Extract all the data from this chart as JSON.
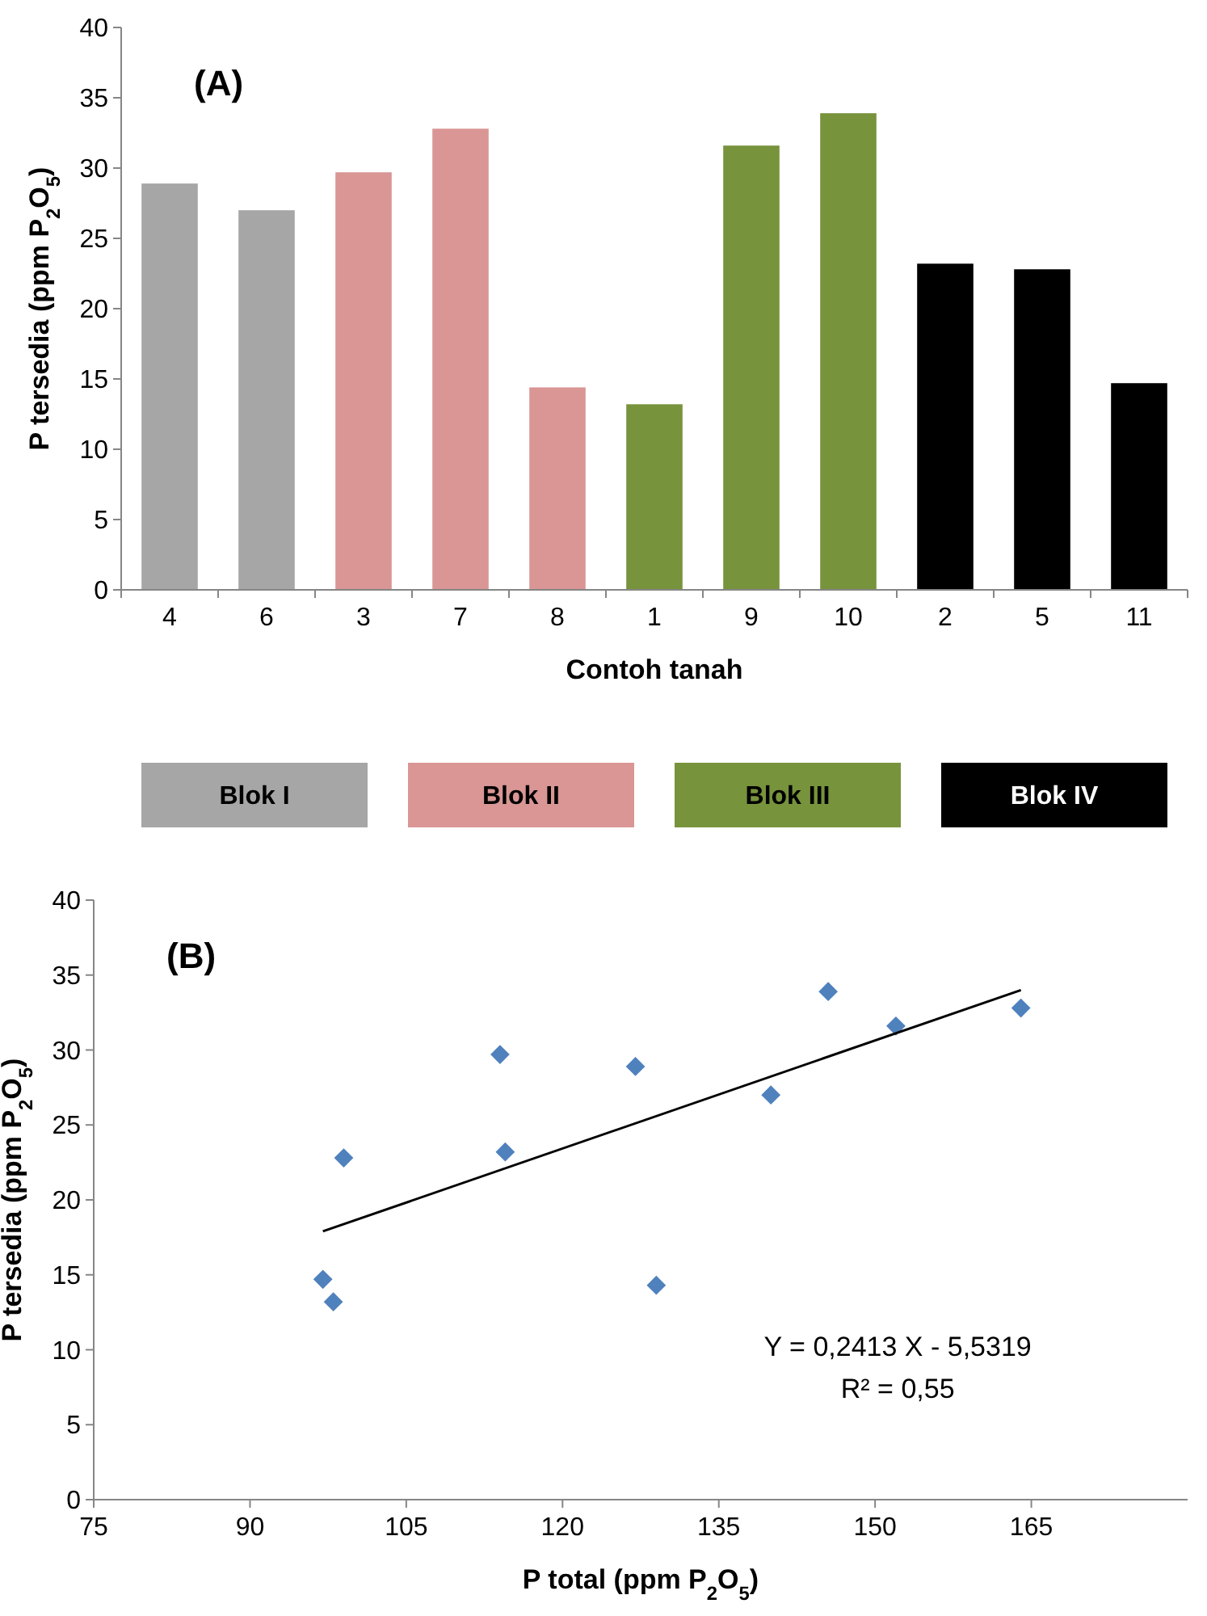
{
  "chart_data": [
    {
      "type": "bar",
      "title": "(A)",
      "xlabel": "Contoh tanah",
      "ylabel": "P tersedia (ppm P$_{2}$O$_{5}$)",
      "categories": [
        "4",
        "6",
        "3",
        "7",
        "8",
        "1",
        "9",
        "10",
        "2",
        "5",
        "11"
      ],
      "series": [
        {
          "name": "Blok I",
          "color": "#a6a6a6",
          "values": [
            28.9,
            27,
            null,
            null,
            null,
            null,
            null,
            null,
            null,
            null,
            null
          ]
        },
        {
          "name": "Blok II",
          "color": "#d99694",
          "values": [
            null,
            null,
            29.7,
            32.8,
            14.4,
            null,
            null,
            null,
            null,
            null,
            null
          ]
        },
        {
          "name": "Blok III",
          "color": "#77933c",
          "values": [
            null,
            null,
            null,
            null,
            null,
            13.2,
            31.6,
            33.9,
            null,
            null,
            null
          ]
        },
        {
          "name": "Blok IV",
          "color": "#000000",
          "values": [
            null,
            null,
            null,
            null,
            null,
            null,
            null,
            null,
            23.2,
            22.8,
            14.7
          ]
        }
      ],
      "ylim": [
        0,
        40
      ],
      "yticks": [
        0,
        5,
        10,
        15,
        20,
        25,
        30,
        35,
        40
      ],
      "legend": "bottom"
    },
    {
      "type": "scatter",
      "title": "(B)",
      "xlabel": "P total (ppm P$_{2}$O$_{5}$)",
      "ylabel": "P tersedia (ppm P$_{2}$O$_{5}$)",
      "xlim": [
        75,
        180
      ],
      "xticks": [
        75,
        90,
        105,
        120,
        135,
        150,
        165
      ],
      "ylim": [
        0,
        40
      ],
      "yticks": [
        0,
        5,
        10,
        15,
        20,
        25,
        30,
        35,
        40
      ],
      "series": [
        {
          "type": "scatter",
          "color": "#4f81bd",
          "marker": "diamond",
          "x": [
            127,
            140,
            114,
            164,
            129,
            98,
            152,
            145.5,
            114.5,
            99,
            97
          ],
          "values": [
            28.9,
            27,
            29.7,
            32.8,
            14.3,
            13.2,
            31.6,
            33.9,
            23.2,
            22.8,
            14.7
          ]
        },
        {
          "type": "line",
          "color": "#000000",
          "line_style": "solid",
          "x": [
            97,
            164
          ],
          "values": [
            17.9,
            34.0
          ]
        }
      ],
      "annotations": [
        "Y = 0,2413 X - 5,5319",
        "R² = 0,55"
      ]
    }
  ]
}
